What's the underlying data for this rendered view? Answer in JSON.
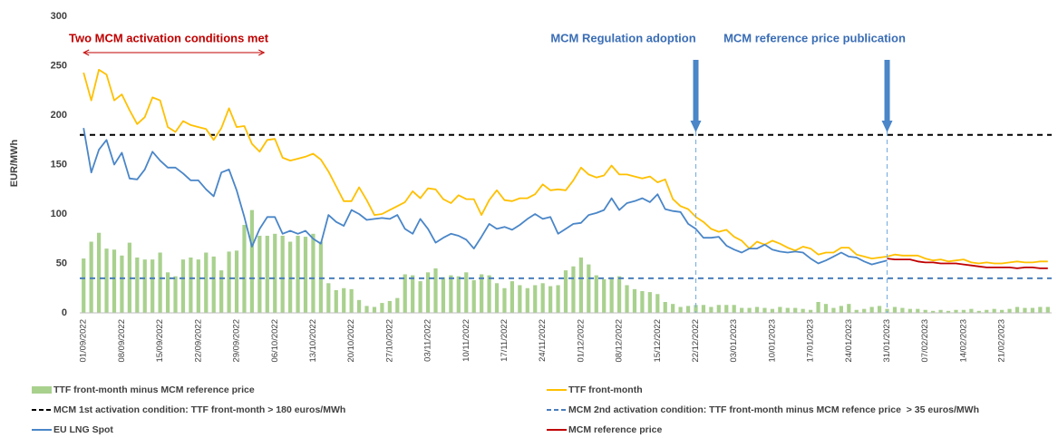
{
  "chart_data": {
    "type": "combo",
    "ylabel": "EUR/MWh",
    "ylim": [
      0,
      300
    ],
    "yticks": [
      0,
      50,
      100,
      150,
      200,
      250,
      300
    ],
    "categories": [
      "01/09/2022",
      null,
      null,
      null,
      null,
      "08/09/2022",
      null,
      null,
      null,
      null,
      "15/09/2022",
      null,
      null,
      null,
      null,
      "22/09/2022",
      null,
      null,
      null,
      null,
      "29/09/2022",
      null,
      null,
      null,
      null,
      "06/10/2022",
      null,
      null,
      null,
      null,
      "13/10/2022",
      null,
      null,
      null,
      null,
      "20/10/2022",
      null,
      null,
      null,
      null,
      "27/10/2022",
      null,
      null,
      null,
      null,
      "03/11/2022",
      null,
      null,
      null,
      null,
      "10/11/2022",
      null,
      null,
      null,
      null,
      "17/11/2022",
      null,
      null,
      null,
      null,
      "24/11/2022",
      null,
      null,
      null,
      null,
      "01/12/2022",
      null,
      null,
      null,
      null,
      "08/12/2022",
      null,
      null,
      null,
      null,
      "15/12/2022",
      null,
      null,
      null,
      null,
      "22/12/2022",
      null,
      null,
      null,
      null,
      "03/01/2023",
      null,
      null,
      null,
      null,
      "10/01/2023",
      null,
      null,
      null,
      null,
      "17/01/2023",
      null,
      null,
      null,
      null,
      "24/01/2023",
      null,
      null,
      null,
      null,
      "31/01/2023",
      null,
      null,
      null,
      null,
      "07/02/2023",
      null,
      null,
      null,
      null,
      "14/02/2023",
      null,
      null,
      null,
      null,
      "21/02/2023",
      null,
      null,
      null,
      null,
      null,
      null
    ],
    "series": [
      {
        "name": "TTF front-month minus MCM reference price",
        "type": "bar",
        "color": "#a9d18e",
        "values": [
          55,
          72,
          81,
          65,
          64,
          58,
          71,
          56,
          54,
          54,
          61,
          41,
          37,
          54,
          56,
          54,
          61,
          57,
          43,
          62,
          63,
          89,
          104,
          78,
          78,
          80,
          78,
          72,
          78,
          77,
          80,
          72,
          30,
          23,
          25,
          24,
          13,
          7,
          6,
          10,
          12,
          15,
          39,
          38,
          32,
          41,
          45,
          36,
          38,
          37,
          41,
          33,
          39,
          38,
          30,
          25,
          32,
          28,
          25,
          28,
          30,
          27,
          28,
          43,
          47,
          56,
          49,
          38,
          34,
          36,
          37,
          28,
          24,
          22,
          21,
          19,
          11,
          9,
          6,
          7,
          8,
          8,
          6,
          8,
          8,
          8,
          5,
          5,
          6,
          5,
          4,
          6,
          5,
          5,
          4,
          3,
          11,
          9,
          5,
          7,
          9,
          3,
          4,
          6,
          7,
          4,
          6,
          5,
          4,
          4,
          3,
          2,
          3,
          2,
          3,
          3,
          4,
          2,
          3,
          4,
          3,
          4,
          6,
          5,
          5,
          6,
          6
        ]
      },
      {
        "name": "TTF front-month",
        "type": "line",
        "color": "#ffc000",
        "values": [
          243,
          215,
          246,
          241,
          215,
          221,
          205,
          191,
          198,
          218,
          215,
          188,
          183,
          194,
          190,
          188,
          186,
          175,
          187,
          207,
          188,
          189,
          171,
          163,
          175,
          176,
          157,
          154,
          156,
          158,
          161,
          155,
          143,
          128,
          113,
          113,
          127,
          114,
          99,
          100,
          104,
          108,
          112,
          123,
          116,
          126,
          125,
          115,
          111,
          119,
          115,
          115,
          99,
          114,
          124,
          114,
          113,
          116,
          116,
          120,
          130,
          124,
          125,
          124,
          134,
          147,
          140,
          137,
          139,
          149,
          140,
          140,
          138,
          136,
          138,
          132,
          135,
          115,
          108,
          105,
          97,
          92,
          85,
          82,
          84,
          77,
          73,
          65,
          72,
          69,
          73,
          70,
          66,
          63,
          67,
          65,
          59,
          61,
          61,
          66,
          66,
          59,
          57,
          55,
          56,
          57,
          59,
          58,
          58,
          58,
          55,
          53,
          54,
          52,
          53,
          54,
          51,
          50,
          51,
          50,
          50,
          51,
          52,
          51,
          51,
          52,
          52
        ]
      },
      {
        "name": "EU LNG Spot",
        "type": "line",
        "color": "#4a86c8",
        "values": [
          187,
          142,
          165,
          175,
          150,
          162,
          136,
          135,
          145,
          163,
          154,
          147,
          147,
          141,
          134,
          134,
          125,
          118,
          142,
          145,
          124,
          97,
          67,
          85,
          97,
          97,
          80,
          83,
          80,
          83,
          75,
          70,
          99,
          92,
          88,
          104,
          100,
          94,
          95,
          96,
          95,
          99,
          85,
          80,
          95,
          85,
          71,
          76,
          80,
          78,
          74,
          65,
          77,
          90,
          85,
          87,
          84,
          89,
          95,
          100,
          95,
          97,
          80,
          85,
          90,
          91,
          99,
          101,
          104,
          116,
          104,
          111,
          113,
          116,
          112,
          120,
          105,
          103,
          102,
          90,
          85,
          76,
          76,
          77,
          68,
          64,
          61,
          65,
          65,
          69,
          64,
          62,
          61,
          62,
          61,
          55,
          50,
          53,
          57,
          61,
          57,
          56,
          52,
          49,
          51,
          53,
          null,
          null,
          null,
          null,
          null,
          null,
          null,
          null,
          null,
          null,
          null,
          null,
          null,
          null,
          null,
          null,
          null,
          null,
          null,
          null,
          null
        ]
      },
      {
        "name": "MCM reference price",
        "type": "line",
        "color": "#c00000",
        "values": [
          null,
          null,
          null,
          null,
          null,
          null,
          null,
          null,
          null,
          null,
          null,
          null,
          null,
          null,
          null,
          null,
          null,
          null,
          null,
          null,
          null,
          null,
          null,
          null,
          null,
          null,
          null,
          null,
          null,
          null,
          null,
          null,
          null,
          null,
          null,
          null,
          null,
          null,
          null,
          null,
          null,
          null,
          null,
          null,
          null,
          null,
          null,
          null,
          null,
          null,
          null,
          null,
          null,
          null,
          null,
          null,
          null,
          null,
          null,
          null,
          null,
          null,
          null,
          null,
          null,
          null,
          null,
          null,
          null,
          null,
          null,
          null,
          null,
          null,
          null,
          null,
          null,
          null,
          null,
          null,
          null,
          null,
          null,
          null,
          null,
          null,
          null,
          null,
          null,
          null,
          null,
          null,
          null,
          null,
          null,
          null,
          null,
          null,
          null,
          null,
          null,
          null,
          null,
          null,
          null,
          55,
          54,
          54,
          54,
          52,
          51,
          51,
          50,
          50,
          50,
          49,
          48,
          47,
          46,
          46,
          46,
          46,
          45,
          46,
          46,
          45,
          45
        ]
      }
    ],
    "reference_lines": [
      {
        "name": "MCM 1st activation condition: TTF front-month > 180 euros/MWh",
        "value": 180,
        "color": "#000000"
      },
      {
        "name": "MCM 2nd activation condition: TTF front-month minus MCM refence price  > 35 euros/MWh",
        "value": 35,
        "color": "#4a7ebb"
      }
    ],
    "event_lines": [
      {
        "text": "MCM Regulation adoption",
        "at": "22/12/2022",
        "color": "#3a6db5"
      },
      {
        "text": "MCM reference price publication",
        "at": "31/01/2023",
        "color": "#3a6db5"
      }
    ],
    "span_annotation": {
      "text": "Two MCM activation conditions met",
      "from": "01/09/2022",
      "to": "06/10/2022",
      "color": "#c00000"
    }
  }
}
